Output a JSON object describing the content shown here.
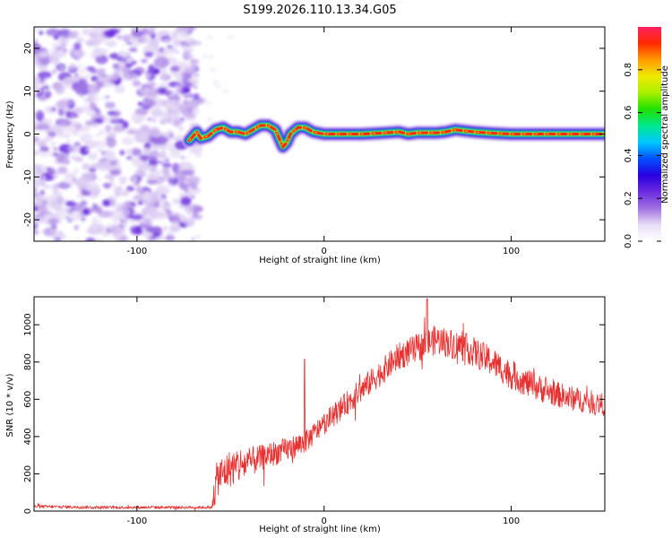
{
  "title": "S199.2026.110.13.34.G05",
  "chart_data": [
    {
      "type": "heatmap",
      "title": "S199.2026.110.13.34.G05",
      "xlabel": "Height of straight line (km)",
      "ylabel": "Frequency (Hz)",
      "xlim": [
        -155,
        150
      ],
      "ylim": [
        -25,
        25
      ],
      "xticks": [
        -100,
        0,
        100
      ],
      "yticks": [
        -20,
        -10,
        0,
        10,
        20
      ],
      "colorbar": {
        "label": "Normalized spectral amplitude",
        "range": [
          0,
          1
        ],
        "ticks": [
          "0.0",
          "0.2",
          "0.4",
          "0.6",
          "0.8"
        ],
        "colors": [
          "#ffffff",
          "#e8ddf6",
          "#a070e0",
          "#6a2be0",
          "#2800e0",
          "#0050ff",
          "#00c8ff",
          "#00e890",
          "#20e000",
          "#a8f000",
          "#f0e800",
          "#ff9a00",
          "#ff2a00",
          "#ff2060"
        ]
      },
      "noise_region_x": [
        -155,
        -70
      ],
      "ridge": {
        "x": [
          -72,
          -68,
          -66,
          -62,
          -58,
          -54,
          -50,
          -46,
          -42,
          -38,
          -34,
          -30,
          -26,
          -24,
          -22,
          -20,
          -18,
          -14,
          -10,
          -6,
          0,
          10,
          20,
          30,
          40,
          45,
          50,
          60,
          65,
          70,
          80,
          90,
          100,
          110,
          120,
          130,
          140,
          150
        ],
        "y": [
          -1.5,
          0.5,
          -1,
          -0.5,
          1,
          1.5,
          0.5,
          0.5,
          0,
          1,
          2,
          2,
          1,
          -1,
          -3,
          -2,
          0,
          1.5,
          1.5,
          0.5,
          0,
          0,
          0,
          0.2,
          0.5,
          0,
          0.3,
          0.3,
          0.5,
          1,
          0.5,
          0.2,
          0,
          0,
          0,
          0,
          0,
          0
        ]
      }
    },
    {
      "type": "line",
      "xlabel": "Height of straight line (km)",
      "ylabel": "SNR (10 * v/v)",
      "xlim": [
        -155,
        150
      ],
      "ylim": [
        0,
        1150
      ],
      "xticks": [
        -100,
        0,
        100
      ],
      "yticks": [
        0,
        200,
        400,
        600,
        800,
        1000
      ],
      "color": "#e83030",
      "envelope": {
        "x": [
          -155,
          -120,
          -80,
          -60,
          -57,
          -50,
          -40,
          -30,
          -20,
          -10,
          0,
          20,
          40,
          55,
          60,
          75,
          90,
          100,
          110,
          120,
          130,
          140,
          150
        ],
        "y": [
          25,
          20,
          20,
          20,
          180,
          230,
          260,
          300,
          330,
          370,
          470,
          650,
          830,
          900,
          920,
          880,
          800,
          730,
          680,
          640,
          610,
          590,
          570
        ]
      },
      "noise": {
        "x": [
          -155,
          -60,
          -58,
          -45,
          -35,
          -10,
          0,
          30,
          60,
          90,
          120,
          150
        ],
        "amp": [
          8,
          8,
          100,
          100,
          70,
          60,
          60,
          70,
          80,
          80,
          70,
          60
        ]
      },
      "spikes": [
        {
          "x": -10.5,
          "y": 815
        },
        {
          "x": 55,
          "y": 1140
        }
      ]
    }
  ]
}
